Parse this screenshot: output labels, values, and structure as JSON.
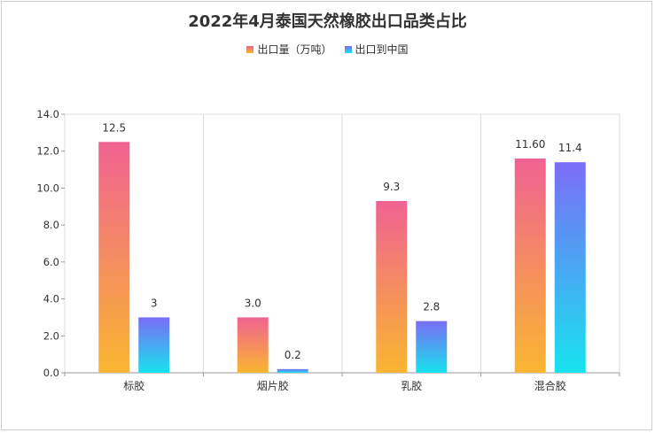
{
  "chart_data": {
    "type": "bar",
    "title": "2022年4月泰国天然橡胶出口品类占比",
    "categories": [
      "标胶",
      "烟片胶",
      "乳胶",
      "混合胶"
    ],
    "series": [
      {
        "name": "出口量（万吨）",
        "values": [
          12.5,
          3.0,
          9.3,
          11.6
        ],
        "labels": [
          "12.5",
          "3.0",
          "9.3",
          "11.60"
        ],
        "gradient": [
          "#f06292",
          "#f9b630"
        ]
      },
      {
        "name": "出口到中国",
        "values": [
          3,
          0.2,
          2.8,
          11.4
        ],
        "labels": [
          "3",
          "0.2",
          "2.8",
          "11.4"
        ],
        "gradient": [
          "#7b6cf6",
          "#17e3ee"
        ]
      }
    ],
    "yticks": [
      "0.0",
      "2.0",
      "4.0",
      "6.0",
      "8.0",
      "10.0",
      "12.0",
      "14.0"
    ],
    "ylim": [
      0,
      14
    ],
    "grid": "vertical category separators",
    "legend_position": "top-center"
  }
}
